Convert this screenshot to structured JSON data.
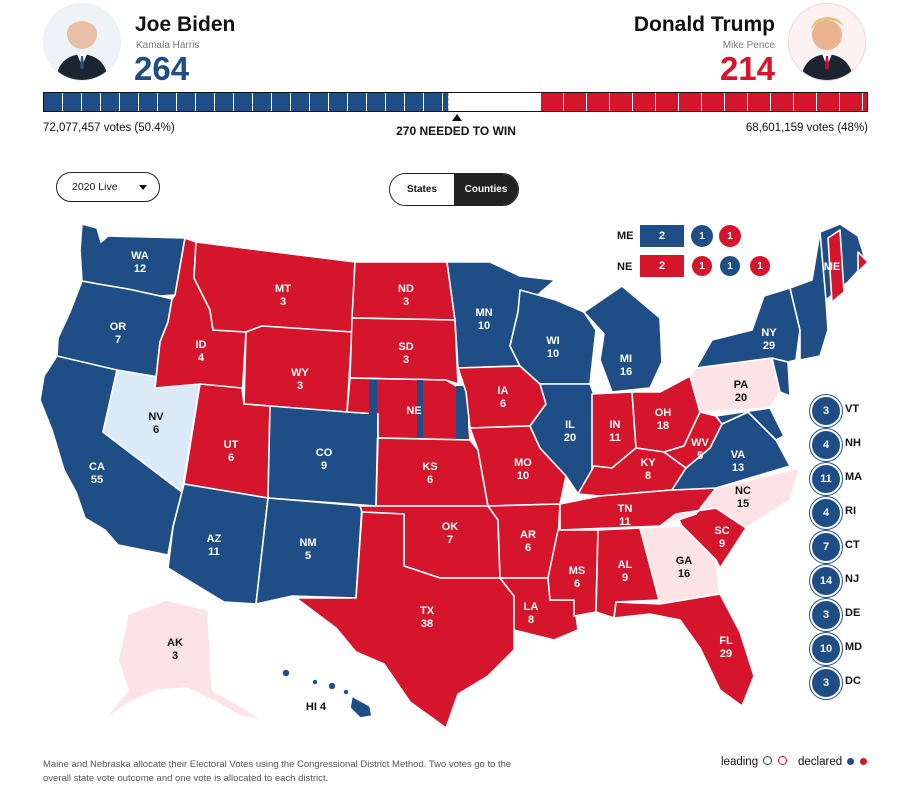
{
  "candidates": {
    "left": {
      "name": "Joe Biden",
      "vp": "Kamala Harris",
      "electoral": "264",
      "votes": "72,077,457 votes (50.4%)",
      "color": "#1f4e86"
    },
    "right": {
      "name": "Donald Trump",
      "vp": "Mike Pence",
      "electoral": "214",
      "votes": "68,601,159 votes (48%)",
      "color": "#d4152b"
    }
  },
  "needed_to_win": "270 NEEDED TO WIN",
  "controls": {
    "year_select": "2020 Live",
    "view_toggle": [
      "States",
      "Counties"
    ]
  },
  "splits": {
    "ME": {
      "label": "ME",
      "total": "2",
      "districts": [
        "1",
        "1"
      ]
    },
    "NE": {
      "label": "NE",
      "total": "2",
      "districts": [
        "1",
        "1",
        "1"
      ]
    }
  },
  "states": [
    {
      "abbr": "WA",
      "ev": "12"
    },
    {
      "abbr": "OR",
      "ev": "7"
    },
    {
      "abbr": "CA",
      "ev": "55"
    },
    {
      "abbr": "NV",
      "ev": "6"
    },
    {
      "abbr": "ID",
      "ev": "4"
    },
    {
      "abbr": "MT",
      "ev": "3"
    },
    {
      "abbr": "WY",
      "ev": "3"
    },
    {
      "abbr": "UT",
      "ev": "6"
    },
    {
      "abbr": "AZ",
      "ev": "11"
    },
    {
      "abbr": "CO",
      "ev": "9"
    },
    {
      "abbr": "NM",
      "ev": "5"
    },
    {
      "abbr": "ND",
      "ev": "3"
    },
    {
      "abbr": "SD",
      "ev": "3"
    },
    {
      "abbr": "NE",
      "ev": ""
    },
    {
      "abbr": "KS",
      "ev": "6"
    },
    {
      "abbr": "OK",
      "ev": "7"
    },
    {
      "abbr": "TX",
      "ev": "38"
    },
    {
      "abbr": "MN",
      "ev": "10"
    },
    {
      "abbr": "IA",
      "ev": "6"
    },
    {
      "abbr": "MO",
      "ev": "10"
    },
    {
      "abbr": "AR",
      "ev": "6"
    },
    {
      "abbr": "LA",
      "ev": "8"
    },
    {
      "abbr": "WI",
      "ev": "10"
    },
    {
      "abbr": "IL",
      "ev": "20"
    },
    {
      "abbr": "MI",
      "ev": "16"
    },
    {
      "abbr": "IN",
      "ev": "11"
    },
    {
      "abbr": "OH",
      "ev": "18"
    },
    {
      "abbr": "KY",
      "ev": "8"
    },
    {
      "abbr": "TN",
      "ev": "11"
    },
    {
      "abbr": "MS",
      "ev": "6"
    },
    {
      "abbr": "AL",
      "ev": "9"
    },
    {
      "abbr": "GA",
      "ev": "16"
    },
    {
      "abbr": "FL",
      "ev": "29"
    },
    {
      "abbr": "SC",
      "ev": "9"
    },
    {
      "abbr": "NC",
      "ev": "15"
    },
    {
      "abbr": "VA",
      "ev": "13"
    },
    {
      "abbr": "WV",
      "ev": "5"
    },
    {
      "abbr": "PA",
      "ev": "20"
    },
    {
      "abbr": "NY",
      "ev": "29"
    },
    {
      "abbr": "ME",
      "ev": ""
    },
    {
      "abbr": "AK",
      "ev": "3"
    },
    {
      "abbr": "HI",
      "ev": "4"
    }
  ],
  "small_states": [
    {
      "ev": "3",
      "abbr": "VT"
    },
    {
      "ev": "4",
      "abbr": "NH"
    },
    {
      "ev": "11",
      "abbr": "MA"
    },
    {
      "ev": "4",
      "abbr": "RI"
    },
    {
      "ev": "7",
      "abbr": "CT"
    },
    {
      "ev": "14",
      "abbr": "NJ"
    },
    {
      "ev": "3",
      "abbr": "DE"
    },
    {
      "ev": "10",
      "abbr": "MD"
    },
    {
      "ev": "3",
      "abbr": "DC"
    }
  ],
  "note": "Maine and Nebraska allocate their Electoral Votes using the Congressional District Method. Two votes go to the overall state vote outcome and one vote is allocated to each district.",
  "legend": {
    "leading": "leading",
    "declared": "declared"
  }
}
